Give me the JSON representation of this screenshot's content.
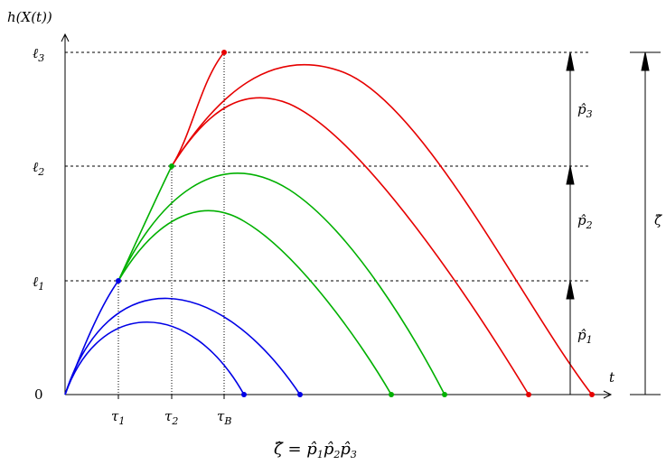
{
  "figure": {
    "y_axis_label": {
      "base": "h(X(t))"
    },
    "x_axis_label": "t",
    "origin_label": "0",
    "levels": [
      {
        "base": "ℓ",
        "sub": "3"
      },
      {
        "base": "ℓ",
        "sub": "2"
      },
      {
        "base": "ℓ",
        "sub": "1"
      }
    ],
    "times": [
      {
        "base": "τ",
        "sub": "1"
      },
      {
        "base": "τ",
        "sub": "2"
      },
      {
        "base": "τ",
        "sub": "B"
      }
    ],
    "p_hats": [
      {
        "base": "p̂",
        "sub": "3"
      },
      {
        "base": "p̂",
        "sub": "2"
      },
      {
        "base": "p̂",
        "sub": "1"
      }
    ],
    "zeta_hat": "ζ̂",
    "formula": {
      "lhs": "ζ̂",
      "eq": " = ",
      "terms": [
        {
          "base": "p̂",
          "sub": "1"
        },
        {
          "base": "p̂",
          "sub": "2"
        },
        {
          "base": "p̂",
          "sub": "3"
        }
      ]
    },
    "colors": {
      "stage1": "#0000e6",
      "stage2": "#00b000",
      "stage3": "#e60000",
      "axis": "#000000"
    }
  }
}
